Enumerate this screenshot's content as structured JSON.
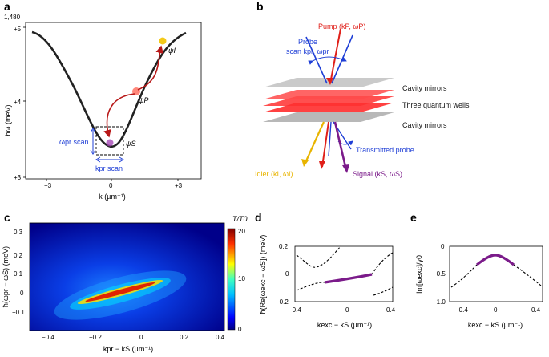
{
  "panel_labels": {
    "a": "a",
    "b": "b",
    "c": "c",
    "d": "d",
    "e": "e"
  },
  "panel_a": {
    "y_top_label": "1,480",
    "ylabel": "ħω (meV)",
    "xlabel": "k (µm⁻¹)",
    "yticks": [
      "+5",
      "+4",
      "+3"
    ],
    "xticks": [
      "−3",
      "0",
      "+3"
    ],
    "psi_i": "ψI",
    "psi_p": "ψP",
    "psi_s": "ψS",
    "omega_scan": "ωpr scan",
    "k_scan": "kpr scan"
  },
  "panel_b": {
    "pump": "Pump (kP, ωP)",
    "probe_line1": "Probe",
    "probe_line2": "scan kpr, ωpr",
    "cavity_top": "Cavity mirrors",
    "wells": "Three quantum wells",
    "cavity_bottom": "Cavity mirrors",
    "transmitted": "Transmitted probe",
    "idler": "Idler (kI, ωI)",
    "signal": "Signal (kS, ωS)"
  },
  "panel_c": {
    "ylabel": "ħ(ωpr − ωS) (meV)",
    "xlabel": "kpr − kS (µm⁻¹)",
    "cbar_title": "T/T0",
    "cbar_ticks": [
      "20",
      "10",
      "0"
    ],
    "yticks": [
      "0.3",
      "0.2",
      "0.1",
      "0",
      "−0.1"
    ],
    "xticks": [
      "−0.4",
      "−0.2",
      "0",
      "0.2",
      "0.4"
    ]
  },
  "panel_d": {
    "ylabel": "ħ(Re[ωexc − ωS]) (meV)",
    "xlabel": "kexc − kS (µm⁻¹)",
    "yticks": [
      "0.2",
      "0",
      "−0.2"
    ],
    "xticks": [
      "−0.4",
      "0",
      "0.4"
    ]
  },
  "panel_e": {
    "ylabel": "Im[ωexc]/γ0",
    "xlabel": "kexc − kS (µm⁻¹)",
    "yticks": [
      "0",
      "−0.5",
      "−1.0"
    ],
    "xticks": [
      "−0.4",
      "0",
      "0.4"
    ]
  },
  "colors": {
    "pump": "#e0201a",
    "probe": "#1f3fd6",
    "idler": "#e8b400",
    "signal": "#7b1b8a"
  }
}
